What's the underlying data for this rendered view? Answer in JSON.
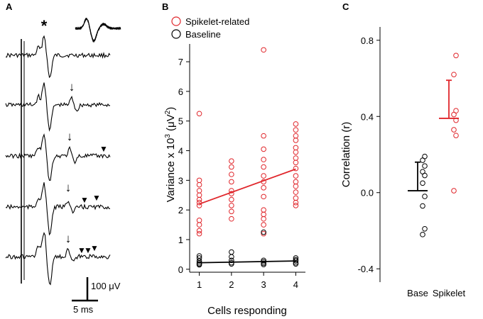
{
  "panels": {
    "a": "A",
    "b": "B",
    "c": "C"
  },
  "panel_a": {
    "asterisk": "*",
    "arrow_glyph": "↓",
    "triangle_glyph": "▼",
    "scale_voltage": "100 μV",
    "scale_time": "5 ms",
    "trace_count": 5,
    "color": "#000000"
  },
  "colors": {
    "spikelet": "#e0262b",
    "baseline": "#000000"
  },
  "chart_data": [
    {
      "type": "scatter",
      "panel": "B",
      "xlabel": "Cells responding",
      "ylabel_parts": [
        "Variance x 10",
        "3",
        " (μV",
        "2",
        ")"
      ],
      "xlim": [
        0.7,
        4.3
      ],
      "ylim": [
        -0.1,
        7.6
      ],
      "xticks": [
        1,
        2,
        3,
        4
      ],
      "yticks": [
        0,
        1,
        2,
        3,
        4,
        5,
        6,
        7
      ],
      "legend": [
        "Spikelet-related",
        "Baseline"
      ],
      "series": [
        {
          "name": "Spikelet-related",
          "points": [
            [
              1,
              5.25
            ],
            [
              1,
              3.0
            ],
            [
              1,
              2.85
            ],
            [
              1,
              2.65
            ],
            [
              1,
              2.5
            ],
            [
              1,
              2.35
            ],
            [
              1,
              2.25
            ],
            [
              1,
              2.15
            ],
            [
              1,
              1.65
            ],
            [
              1,
              1.5
            ],
            [
              1,
              1.3
            ],
            [
              1,
              1.2
            ],
            [
              2,
              3.65
            ],
            [
              2,
              3.45
            ],
            [
              2,
              3.2
            ],
            [
              2,
              2.95
            ],
            [
              2,
              2.65
            ],
            [
              2,
              2.55
            ],
            [
              2,
              2.35
            ],
            [
              2,
              2.15
            ],
            [
              2,
              1.95
            ],
            [
              2,
              1.7
            ],
            [
              3,
              7.4
            ],
            [
              3,
              4.5
            ],
            [
              3,
              4.05
            ],
            [
              3,
              3.7
            ],
            [
              3,
              3.45
            ],
            [
              3,
              3.15
            ],
            [
              3,
              2.95
            ],
            [
              3,
              2.75
            ],
            [
              3,
              2.45
            ],
            [
              3,
              2.0
            ],
            [
              3,
              1.85
            ],
            [
              3,
              1.7
            ],
            [
              3,
              1.5
            ],
            [
              3,
              1.2
            ],
            [
              4,
              4.9
            ],
            [
              4,
              4.7
            ],
            [
              4,
              4.5
            ],
            [
              4,
              4.35
            ],
            [
              4,
              4.1
            ],
            [
              4,
              3.95
            ],
            [
              4,
              3.75
            ],
            [
              4,
              3.6
            ],
            [
              4,
              3.4
            ],
            [
              4,
              3.15
            ],
            [
              4,
              2.95
            ],
            [
              4,
              2.8
            ],
            [
              4,
              2.6
            ],
            [
              4,
              2.4
            ],
            [
              4,
              2.25
            ],
            [
              4,
              2.15
            ]
          ],
          "fit": [
            [
              1,
              2.2
            ],
            [
              4,
              3.38
            ]
          ]
        },
        {
          "name": "Baseline",
          "points": [
            [
              1,
              0.45
            ],
            [
              1,
              0.38
            ],
            [
              1,
              0.28
            ],
            [
              1,
              0.22
            ],
            [
              1,
              0.18
            ],
            [
              1,
              0.15
            ],
            [
              2,
              0.58
            ],
            [
              2,
              0.42
            ],
            [
              2,
              0.3
            ],
            [
              2,
              0.22
            ],
            [
              2,
              0.18
            ],
            [
              3,
              1.25
            ],
            [
              3,
              0.3
            ],
            [
              3,
              0.25
            ],
            [
              3,
              0.2
            ],
            [
              3,
              0.16
            ],
            [
              4,
              0.38
            ],
            [
              4,
              0.32
            ],
            [
              4,
              0.28
            ],
            [
              4,
              0.22
            ],
            [
              4,
              0.18
            ]
          ],
          "fit": [
            [
              1,
              0.22
            ],
            [
              4,
              0.28
            ]
          ]
        }
      ]
    },
    {
      "type": "scatter",
      "panel": "C",
      "ylabel": "Correlation (r)",
      "categories": [
        "Base",
        "Spikelet"
      ],
      "ylim": [
        -0.47,
        0.87
      ],
      "yticks": [
        -0.4,
        0.0,
        0.4,
        0.8
      ],
      "ytick_labels": [
        "-0.4",
        "0.0",
        "0.4",
        "0.8"
      ],
      "series": [
        {
          "name": "Base",
          "values": [
            0.19,
            0.17,
            0.14,
            0.11,
            0.09,
            0.05,
            -0.02,
            -0.07,
            -0.19,
            -0.22
          ],
          "mean": 0.01,
          "error": 0.15
        },
        {
          "name": "Spikelet",
          "values": [
            0.72,
            0.62,
            0.43,
            0.41,
            0.38,
            0.33,
            0.3,
            0.01
          ],
          "mean": 0.39,
          "error": 0.2
        }
      ]
    }
  ]
}
